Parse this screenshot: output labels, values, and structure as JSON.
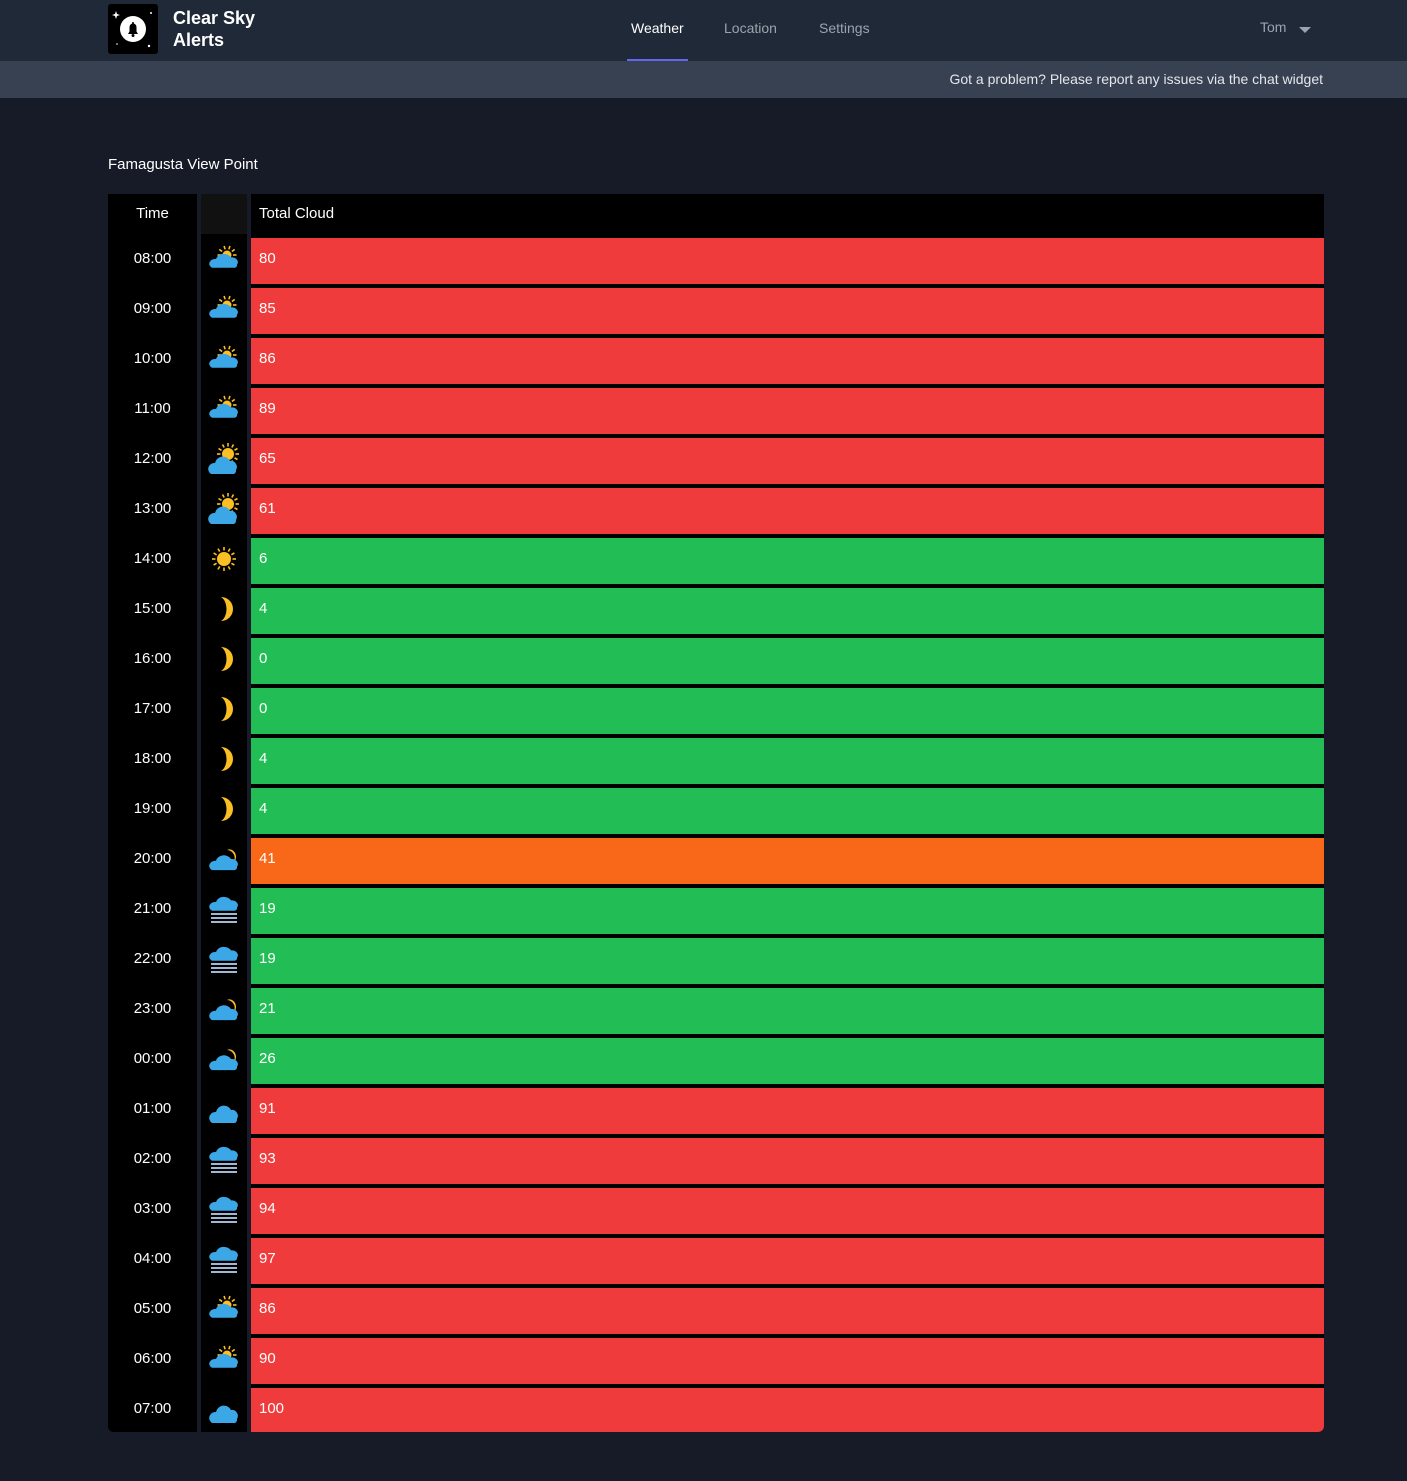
{
  "app": {
    "title_line1": "Clear Sky",
    "title_line2": "Alerts"
  },
  "nav": {
    "weather": "Weather",
    "location": "Location",
    "settings": "Settings"
  },
  "user": {
    "name": "Tom"
  },
  "notice": "Got a problem? Please report any issues via the chat widget",
  "location_name": "Famagusta View Point",
  "table": {
    "headers": {
      "time": "Time",
      "icon": "",
      "cloud": "Total Cloud"
    },
    "rows": [
      {
        "time": "08:00",
        "icon": "partly-cloudy-day-icon",
        "cloud": "80",
        "status": "bad"
      },
      {
        "time": "09:00",
        "icon": "partly-cloudy-day-icon",
        "cloud": "85",
        "status": "bad"
      },
      {
        "time": "10:00",
        "icon": "partly-cloudy-day-icon",
        "cloud": "86",
        "status": "bad"
      },
      {
        "time": "11:00",
        "icon": "partly-cloudy-day-icon",
        "cloud": "89",
        "status": "bad"
      },
      {
        "time": "12:00",
        "icon": "sun-behind-cloud-icon",
        "cloud": "65",
        "status": "bad"
      },
      {
        "time": "13:00",
        "icon": "sun-behind-cloud-icon",
        "cloud": "61",
        "status": "bad"
      },
      {
        "time": "14:00",
        "icon": "sun-icon",
        "cloud": "6",
        "status": "good"
      },
      {
        "time": "15:00",
        "icon": "moon-icon",
        "cloud": "4",
        "status": "good"
      },
      {
        "time": "16:00",
        "icon": "moon-icon",
        "cloud": "0",
        "status": "good"
      },
      {
        "time": "17:00",
        "icon": "moon-icon",
        "cloud": "0",
        "status": "good"
      },
      {
        "time": "18:00",
        "icon": "moon-icon",
        "cloud": "4",
        "status": "good"
      },
      {
        "time": "19:00",
        "icon": "moon-icon",
        "cloud": "4",
        "status": "good"
      },
      {
        "time": "20:00",
        "icon": "partly-cloudy-night-icon",
        "cloud": "41",
        "status": "medium"
      },
      {
        "time": "21:00",
        "icon": "fog-icon",
        "cloud": "19",
        "status": "good"
      },
      {
        "time": "22:00",
        "icon": "fog-icon",
        "cloud": "19",
        "status": "good"
      },
      {
        "time": "23:00",
        "icon": "partly-cloudy-night-icon",
        "cloud": "21",
        "status": "good"
      },
      {
        "time": "00:00",
        "icon": "partly-cloudy-night-icon",
        "cloud": "26",
        "status": "good"
      },
      {
        "time": "01:00",
        "icon": "cloud-icon",
        "cloud": "91",
        "status": "bad"
      },
      {
        "time": "02:00",
        "icon": "fog-icon",
        "cloud": "93",
        "status": "bad"
      },
      {
        "time": "03:00",
        "icon": "fog-icon",
        "cloud": "94",
        "status": "bad"
      },
      {
        "time": "04:00",
        "icon": "fog-icon",
        "cloud": "97",
        "status": "bad"
      },
      {
        "time": "05:00",
        "icon": "partly-cloudy-day-icon",
        "cloud": "86",
        "status": "bad"
      },
      {
        "time": "06:00",
        "icon": "partly-cloudy-day-icon",
        "cloud": "90",
        "status": "bad"
      },
      {
        "time": "07:00",
        "icon": "cloud-icon",
        "cloud": "100",
        "status": "bad"
      }
    ]
  },
  "colors": {
    "bad": "#ef3b3b",
    "good": "#22be55",
    "medium": "#f96718",
    "accent": "#6366f1"
  }
}
